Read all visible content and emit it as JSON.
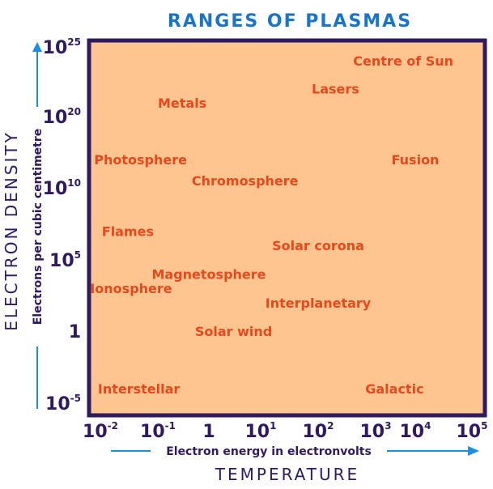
{
  "chart_data": {
    "type": "scatter",
    "title": "RANGES OF PLASMAS",
    "ylabel": "ELECTRON DENSITY",
    "ylabel_sub": "Electrons per cubic centimetre",
    "xlabel": "TEMPERATURE",
    "xlabel_sub": "Electron energy in electronvolts",
    "x_scale": "log",
    "y_scale": "log",
    "xlim": [
      0.01,
      100000
    ],
    "ylim": [
      1e-05,
      1e+25
    ],
    "grid": false,
    "x_ticks": [
      {
        "base": "10",
        "exp": "-2",
        "value": 0.01
      },
      {
        "base": "10",
        "exp": "-1",
        "value": 0.1
      },
      {
        "base": "1",
        "exp": "",
        "value": 1
      },
      {
        "base": "10",
        "exp": "1",
        "value": 10
      },
      {
        "base": "10",
        "exp": "2",
        "value": 100
      },
      {
        "base": "10",
        "exp": "3",
        "value": 1000
      },
      {
        "base": "10",
        "exp": "4",
        "value": 10000
      },
      {
        "base": "10",
        "exp": "5",
        "value": 100000
      }
    ],
    "y_ticks": [
      {
        "base": "10",
        "exp": "25",
        "value": 1e+25
      },
      {
        "base": "10",
        "exp": "20",
        "value": 1e+20
      },
      {
        "base": "10",
        "exp": "10",
        "value": 10000000000.0
      },
      {
        "base": "10",
        "exp": "5",
        "value": 100000.0
      },
      {
        "base": "1",
        "exp": "",
        "value": 1
      },
      {
        "base": "10",
        "exp": "-5",
        "value": 1e-05
      }
    ],
    "points": [
      {
        "label": "Centre of Sun",
        "x": 5000,
        "y": 1e+24
      },
      {
        "label": "Lasers",
        "x": 200,
        "y": 1e+22
      },
      {
        "label": "Metals",
        "x": 0.3,
        "y": 1e+21
      },
      {
        "label": "Photosphere",
        "x": 0.05,
        "y": 100000000000000.0
      },
      {
        "label": "Fusion",
        "x": 10000,
        "y": 100000000000000.0
      },
      {
        "label": "Chromosphere",
        "x": 5,
        "y": 100000000000.0
      },
      {
        "label": "Flames",
        "x": 0.03,
        "y": 10000000.0
      },
      {
        "label": "Solar corona",
        "x": 100,
        "y": 1000000.0
      },
      {
        "label": "Magnetosphere",
        "x": 1,
        "y": 10000.0
      },
      {
        "label": "Ionosphere",
        "x": 0.03,
        "y": 1000.0
      },
      {
        "label": "Interplanetary",
        "x": 100,
        "y": 100.0
      },
      {
        "label": "Solar wind",
        "x": 3,
        "y": 1
      },
      {
        "label": "Interstellar",
        "x": 0.03,
        "y": 0.0001
      },
      {
        "label": "Galactic",
        "x": 3000,
        "y": 0.0001
      }
    ],
    "colors": {
      "title": "#1a74c9",
      "axis_text": "#2f1a5f",
      "region_fill": "#ffc590",
      "frame": "#2e1a61",
      "point_label": "#e8481c",
      "arrow": "#1d8fe0"
    }
  }
}
